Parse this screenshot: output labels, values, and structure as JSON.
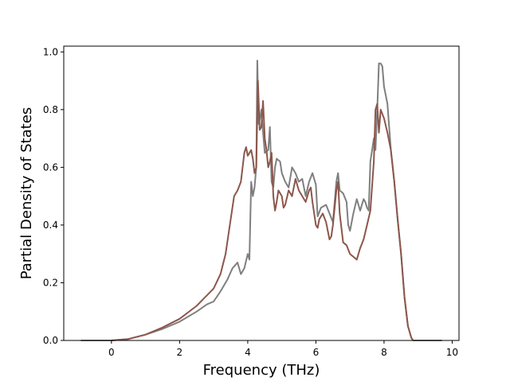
{
  "chart_data": {
    "type": "line",
    "xlabel": "Frequency (THz)",
    "ylabel": "Partial Density of States",
    "xlim": [
      -1.4,
      10.2
    ],
    "ylim": [
      0.0,
      1.02
    ],
    "xticks": [
      0,
      2,
      4,
      6,
      8,
      10
    ],
    "yticks": [
      0.0,
      0.2,
      0.4,
      0.6,
      0.8,
      1.0
    ],
    "grid": false,
    "series": [
      {
        "color": "#7f7f7f",
        "points": [
          [
            -0.9,
            0.0
          ],
          [
            0.0,
            0.0
          ],
          [
            0.5,
            0.005
          ],
          [
            1.0,
            0.02
          ],
          [
            1.5,
            0.04
          ],
          [
            2.0,
            0.065
          ],
          [
            2.5,
            0.1
          ],
          [
            2.8,
            0.125
          ],
          [
            3.0,
            0.135
          ],
          [
            3.2,
            0.17
          ],
          [
            3.4,
            0.21
          ],
          [
            3.55,
            0.25
          ],
          [
            3.7,
            0.27
          ],
          [
            3.8,
            0.23
          ],
          [
            3.9,
            0.25
          ],
          [
            4.0,
            0.3
          ],
          [
            4.05,
            0.28
          ],
          [
            4.1,
            0.55
          ],
          [
            4.15,
            0.5
          ],
          [
            4.2,
            0.53
          ],
          [
            4.25,
            0.6
          ],
          [
            4.28,
            0.97
          ],
          [
            4.32,
            0.75
          ],
          [
            4.36,
            0.77
          ],
          [
            4.4,
            0.8
          ],
          [
            4.45,
            0.72
          ],
          [
            4.5,
            0.65
          ],
          [
            4.6,
            0.66
          ],
          [
            4.65,
            0.74
          ],
          [
            4.7,
            0.55
          ],
          [
            4.75,
            0.53
          ],
          [
            4.8,
            0.6
          ],
          [
            4.85,
            0.63
          ],
          [
            4.95,
            0.62
          ],
          [
            5.0,
            0.58
          ],
          [
            5.1,
            0.55
          ],
          [
            5.2,
            0.53
          ],
          [
            5.3,
            0.6
          ],
          [
            5.4,
            0.58
          ],
          [
            5.5,
            0.55
          ],
          [
            5.6,
            0.56
          ],
          [
            5.7,
            0.5
          ],
          [
            5.8,
            0.55
          ],
          [
            5.9,
            0.58
          ],
          [
            6.0,
            0.54
          ],
          [
            6.05,
            0.43
          ],
          [
            6.15,
            0.46
          ],
          [
            6.3,
            0.47
          ],
          [
            6.4,
            0.44
          ],
          [
            6.5,
            0.41
          ],
          [
            6.6,
            0.55
          ],
          [
            6.65,
            0.58
          ],
          [
            6.7,
            0.52
          ],
          [
            6.8,
            0.51
          ],
          [
            6.9,
            0.48
          ],
          [
            6.95,
            0.4
          ],
          [
            7.0,
            0.38
          ],
          [
            7.1,
            0.44
          ],
          [
            7.2,
            0.49
          ],
          [
            7.3,
            0.45
          ],
          [
            7.4,
            0.49
          ],
          [
            7.45,
            0.48
          ],
          [
            7.5,
            0.46
          ],
          [
            7.55,
            0.45
          ],
          [
            7.6,
            0.62
          ],
          [
            7.7,
            0.7
          ],
          [
            7.75,
            0.66
          ],
          [
            7.8,
            0.8
          ],
          [
            7.85,
            0.96
          ],
          [
            7.9,
            0.96
          ],
          [
            7.95,
            0.95
          ],
          [
            8.0,
            0.88
          ],
          [
            8.1,
            0.82
          ],
          [
            8.2,
            0.66
          ],
          [
            8.3,
            0.55
          ],
          [
            8.4,
            0.42
          ],
          [
            8.5,
            0.3
          ],
          [
            8.6,
            0.15
          ],
          [
            8.7,
            0.05
          ],
          [
            8.8,
            0.01
          ],
          [
            8.85,
            0.0
          ],
          [
            9.7,
            0.0
          ]
        ]
      },
      {
        "color": "#8c564b",
        "points": [
          [
            0.0,
            0.0
          ],
          [
            0.5,
            0.005
          ],
          [
            1.0,
            0.02
          ],
          [
            1.5,
            0.045
          ],
          [
            2.0,
            0.075
          ],
          [
            2.5,
            0.12
          ],
          [
            3.0,
            0.18
          ],
          [
            3.2,
            0.23
          ],
          [
            3.35,
            0.3
          ],
          [
            3.5,
            0.42
          ],
          [
            3.6,
            0.5
          ],
          [
            3.7,
            0.52
          ],
          [
            3.8,
            0.55
          ],
          [
            3.9,
            0.65
          ],
          [
            3.95,
            0.67
          ],
          [
            4.0,
            0.64
          ],
          [
            4.1,
            0.66
          ],
          [
            4.15,
            0.63
          ],
          [
            4.2,
            0.58
          ],
          [
            4.25,
            0.6
          ],
          [
            4.3,
            0.9
          ],
          [
            4.35,
            0.73
          ],
          [
            4.4,
            0.74
          ],
          [
            4.45,
            0.83
          ],
          [
            4.5,
            0.7
          ],
          [
            4.55,
            0.66
          ],
          [
            4.6,
            0.6
          ],
          [
            4.65,
            0.62
          ],
          [
            4.7,
            0.65
          ],
          [
            4.75,
            0.5
          ],
          [
            4.8,
            0.45
          ],
          [
            4.85,
            0.48
          ],
          [
            4.9,
            0.52
          ],
          [
            5.0,
            0.5
          ],
          [
            5.05,
            0.46
          ],
          [
            5.1,
            0.47
          ],
          [
            5.2,
            0.52
          ],
          [
            5.3,
            0.5
          ],
          [
            5.4,
            0.56
          ],
          [
            5.5,
            0.52
          ],
          [
            5.6,
            0.5
          ],
          [
            5.7,
            0.48
          ],
          [
            5.8,
            0.52
          ],
          [
            5.85,
            0.53
          ],
          [
            5.9,
            0.48
          ],
          [
            6.0,
            0.4
          ],
          [
            6.05,
            0.39
          ],
          [
            6.1,
            0.42
          ],
          [
            6.2,
            0.44
          ],
          [
            6.3,
            0.41
          ],
          [
            6.4,
            0.35
          ],
          [
            6.45,
            0.36
          ],
          [
            6.5,
            0.4
          ],
          [
            6.6,
            0.52
          ],
          [
            6.65,
            0.55
          ],
          [
            6.7,
            0.44
          ],
          [
            6.8,
            0.34
          ],
          [
            6.9,
            0.33
          ],
          [
            7.0,
            0.3
          ],
          [
            7.1,
            0.29
          ],
          [
            7.2,
            0.28
          ],
          [
            7.3,
            0.32
          ],
          [
            7.4,
            0.35
          ],
          [
            7.5,
            0.4
          ],
          [
            7.6,
            0.45
          ],
          [
            7.7,
            0.62
          ],
          [
            7.75,
            0.8
          ],
          [
            7.8,
            0.82
          ],
          [
            7.85,
            0.72
          ],
          [
            7.9,
            0.8
          ],
          [
            8.0,
            0.77
          ],
          [
            8.1,
            0.72
          ],
          [
            8.2,
            0.66
          ],
          [
            8.3,
            0.55
          ],
          [
            8.4,
            0.42
          ],
          [
            8.5,
            0.3
          ],
          [
            8.6,
            0.15
          ],
          [
            8.7,
            0.05
          ],
          [
            8.8,
            0.01
          ],
          [
            8.85,
            0.0
          ]
        ]
      }
    ]
  }
}
